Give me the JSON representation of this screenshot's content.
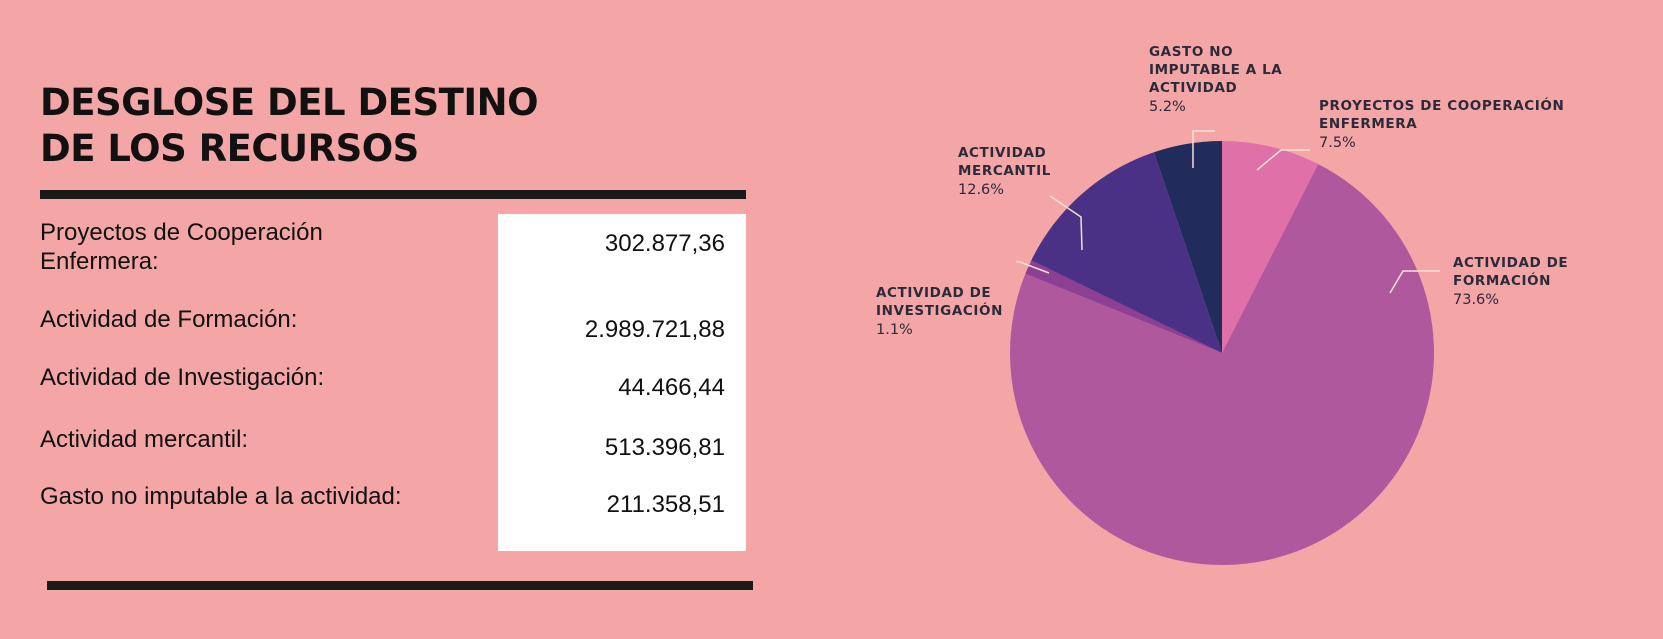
{
  "title": [
    "DESGLOSE DEL DESTINO",
    "DE LOS RECURSOS"
  ],
  "rows": [
    {
      "label": "Proyectos de Cooperación\nEnfermera:",
      "value": "302.877,36"
    },
    {
      "label": "Actividad de Formación:",
      "value": "2.989.721,88"
    },
    {
      "label": "Actividad de Investigación:",
      "value": "44.466,44"
    },
    {
      "label": "Actividad mercantil:",
      "value": "513.396,81"
    },
    {
      "label": "Gasto no imputable a la actividad:",
      "value": "211.358,51"
    }
  ],
  "chart_data": {
    "type": "pie",
    "slices": [
      {
        "label": [
          "PROYECTOS DE COOPERACIÓN",
          "ENFERMERA"
        ],
        "value": 7.5,
        "pct_label": "7.5%",
        "color": "#e070a8"
      },
      {
        "label": [
          "ACTIVIDAD DE",
          "FORMACIÓN"
        ],
        "value": 73.6,
        "pct_label": "73.6%",
        "color": "#b0589e"
      },
      {
        "label": [
          "ACTIVIDAD DE",
          "INVESTIGACIÓN"
        ],
        "value": 1.1,
        "pct_label": "1.1%",
        "color": "#8d3f94"
      },
      {
        "label": [
          "ACTIVIDAD",
          "MERCANTIL"
        ],
        "value": 12.6,
        "pct_label": "12.6%",
        "color": "#4b3186"
      },
      {
        "label": [
          "GASTO NO",
          "IMPUTABLE A LA",
          "ACTIVIDAD"
        ],
        "value": 5.2,
        "pct_label": "5.2%",
        "color": "#222c5c"
      }
    ],
    "start": "12 o'clock",
    "direction": "clockwise",
    "leader_line_color": "#f2e2d8"
  }
}
